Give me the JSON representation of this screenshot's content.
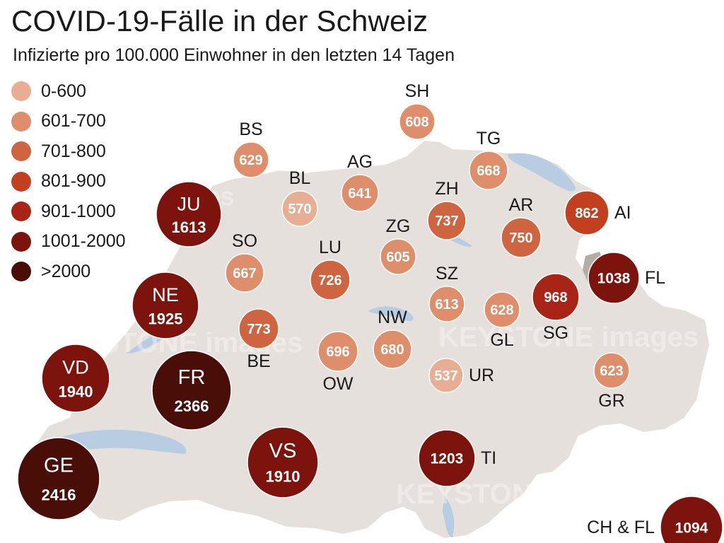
{
  "title": "COVID-19-Fälle in der Schweiz",
  "subtitle": "Infizierte pro 100.000 Einwohner in den letzten 14 Tagen",
  "watermark": "KEYSTONE images",
  "legend": [
    {
      "label": "0-600",
      "color": "#e8ae93"
    },
    {
      "label": "601-700",
      "color": "#de8e6a"
    },
    {
      "label": "701-800",
      "color": "#cf6440"
    },
    {
      "label": "801-900",
      "color": "#c2401f"
    },
    {
      "label": "901-1000",
      "color": "#a82416"
    },
    {
      "label": "1001-2000",
      "color": "#7c140d"
    },
    {
      "label": ">2000",
      "color": "#4a0e08"
    }
  ],
  "cantons": [
    {
      "code": "SH",
      "value": "608"
    },
    {
      "code": "BS",
      "value": "629"
    },
    {
      "code": "TG",
      "value": "668"
    },
    {
      "code": "AG",
      "value": "641"
    },
    {
      "code": "BL",
      "value": "570"
    },
    {
      "code": "ZH",
      "value": "737"
    },
    {
      "code": "JU",
      "value": "1613"
    },
    {
      "code": "AR",
      "value": "750"
    },
    {
      "code": "AI",
      "value": "862"
    },
    {
      "code": "ZG",
      "value": "605"
    },
    {
      "code": "SO",
      "value": "667"
    },
    {
      "code": "LU",
      "value": "726"
    },
    {
      "code": "FL",
      "value": "1038"
    },
    {
      "code": "NE",
      "value": "1925"
    },
    {
      "code": "SZ",
      "value": "613"
    },
    {
      "code": "SG",
      "value": "968"
    },
    {
      "code": "BE",
      "value": "773"
    },
    {
      "code": "GL",
      "value": "628"
    },
    {
      "code": "NW",
      "value": "680"
    },
    {
      "code": "OW",
      "value": "696"
    },
    {
      "code": "VD",
      "value": "1940"
    },
    {
      "code": "FR",
      "value": "2366"
    },
    {
      "code": "UR",
      "value": "537"
    },
    {
      "code": "GR",
      "value": "623"
    },
    {
      "code": "GE",
      "value": "2416"
    },
    {
      "code": "VS",
      "value": "1910"
    },
    {
      "code": "TI",
      "value": "1203"
    },
    {
      "code": "CH & FL",
      "value": "1094"
    }
  ]
}
